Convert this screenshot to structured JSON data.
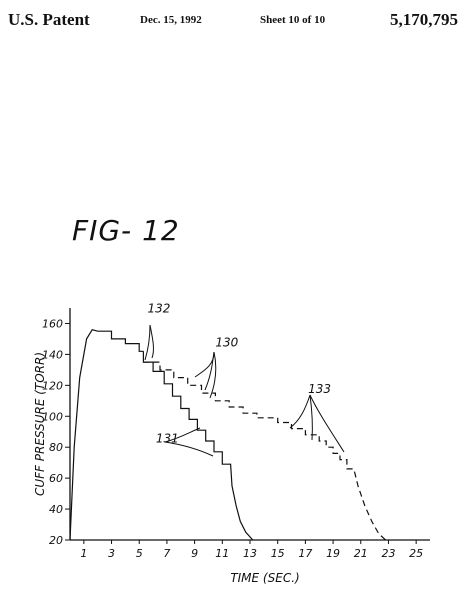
{
  "header": {
    "left": "U.S. Patent",
    "date": "Dec. 15, 1992",
    "sheet": "Sheet 10 of 10",
    "patent_number": "5,170,795"
  },
  "figure_label": "FIG- 12",
  "chart_data": {
    "type": "line",
    "xlabel": "TIME (SEC.)",
    "ylabel": "CUFF PRESSURE (TORR)",
    "xlim": [
      0,
      26
    ],
    "ylim": [
      20,
      170
    ],
    "x_ticks": [
      1,
      3,
      5,
      7,
      9,
      11,
      13,
      15,
      17,
      19,
      21,
      23,
      25
    ],
    "y_ticks": [
      20,
      40,
      60,
      80,
      100,
      120,
      140,
      160
    ],
    "series": [
      {
        "name": "132",
        "style": "solid",
        "points": [
          [
            0,
            20
          ],
          [
            0.3,
            80
          ],
          [
            0.7,
            125
          ],
          [
            1.2,
            150
          ],
          [
            1.6,
            156
          ],
          [
            2,
            155
          ],
          [
            3,
            155
          ],
          [
            3,
            150
          ],
          [
            4,
            150
          ],
          [
            4,
            147
          ],
          [
            5,
            147
          ],
          [
            5,
            142
          ],
          [
            5.3,
            142
          ]
        ]
      },
      {
        "name": "131",
        "style": "solid",
        "points": [
          [
            5.3,
            142
          ],
          [
            5.3,
            135
          ],
          [
            6,
            135
          ],
          [
            6,
            129
          ],
          [
            6.8,
            129
          ],
          [
            6.8,
            121
          ],
          [
            7.4,
            121
          ],
          [
            7.4,
            113
          ],
          [
            8,
            113
          ],
          [
            8,
            105
          ],
          [
            8.6,
            105
          ],
          [
            8.6,
            98
          ],
          [
            9.2,
            98
          ],
          [
            9.2,
            91
          ],
          [
            9.8,
            91
          ],
          [
            9.8,
            84
          ],
          [
            10.4,
            84
          ],
          [
            10.4,
            77
          ],
          [
            11,
            77
          ],
          [
            11,
            69
          ],
          [
            11.6,
            69
          ],
          [
            11.7,
            55
          ],
          [
            12,
            42
          ],
          [
            12.3,
            32
          ],
          [
            12.7,
            25
          ],
          [
            13.2,
            20
          ]
        ]
      },
      {
        "name": "130",
        "style": "dashed",
        "points": [
          [
            5.3,
            135
          ],
          [
            6.5,
            135
          ],
          [
            6.5,
            130
          ],
          [
            7.5,
            130
          ],
          [
            7.5,
            125
          ],
          [
            8.5,
            125
          ],
          [
            8.5,
            120
          ],
          [
            9.5,
            120
          ],
          [
            9.5,
            115
          ],
          [
            10.5,
            115
          ],
          [
            10.5,
            110
          ],
          [
            11.5,
            110
          ],
          [
            11.5,
            106
          ],
          [
            12.5,
            106
          ],
          [
            12.5,
            102
          ],
          [
            13.5,
            102
          ],
          [
            13.5,
            99
          ],
          [
            15,
            99
          ],
          [
            15,
            96
          ],
          [
            16,
            96
          ],
          [
            16,
            92
          ],
          [
            17,
            92
          ],
          [
            17,
            88
          ],
          [
            18,
            88
          ],
          [
            18,
            84
          ],
          [
            18.5,
            84
          ],
          [
            18.5,
            80
          ],
          [
            19,
            80
          ],
          [
            19,
            76
          ],
          [
            19.5,
            76
          ],
          [
            19.5,
            72
          ],
          [
            20,
            72
          ],
          [
            20,
            66
          ],
          [
            20.5,
            66
          ],
          [
            20.8,
            55
          ],
          [
            21.3,
            42
          ],
          [
            21.8,
            32
          ],
          [
            22.3,
            24
          ],
          [
            22.8,
            20
          ]
        ]
      }
    ],
    "annotations": [
      {
        "text": "132",
        "x": 5.6,
        "y": 167
      },
      {
        "text": "130",
        "x": 10.5,
        "y": 145
      },
      {
        "text": "131",
        "x": 6.2,
        "y": 83
      },
      {
        "text": "133",
        "x": 17.2,
        "y": 115
      }
    ]
  }
}
